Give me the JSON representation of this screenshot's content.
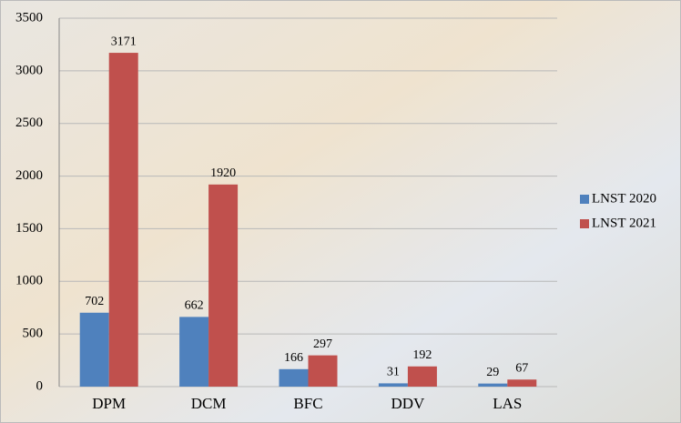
{
  "chart_data": {
    "type": "bar",
    "categories": [
      "DPM",
      "DCM",
      "BFC",
      "DDV",
      "LAS"
    ],
    "series": [
      {
        "name": "LNST 2020",
        "color": "#4f81bd",
        "values": [
          702,
          662,
          166,
          31,
          29
        ]
      },
      {
        "name": "LNST 2021",
        "color": "#c0504d",
        "values": [
          3171,
          1920,
          297,
          192,
          67
        ]
      }
    ],
    "ylim": [
      0,
      3500
    ],
    "yticks": [
      0,
      500,
      1000,
      1500,
      2000,
      2500,
      3000,
      3500
    ],
    "grid": true,
    "legend": "right"
  }
}
